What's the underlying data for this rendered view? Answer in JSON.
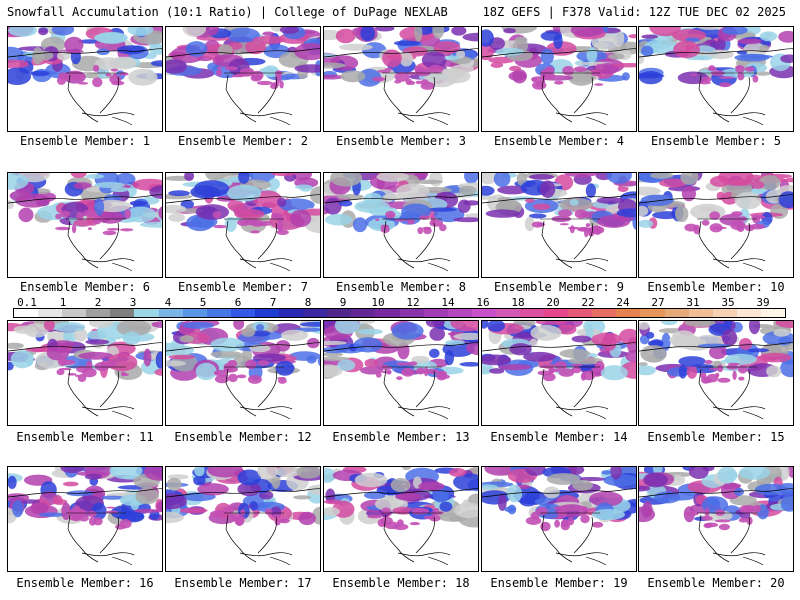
{
  "header": {
    "left": "Snowfall Accumulation (10:1 Ratio) | College of DuPage NEXLAB",
    "right": "18Z GEFS | F378 Valid: 12Z TUE DEC 02 2025"
  },
  "members": [
    {
      "label": "Ensemble Member: 1"
    },
    {
      "label": "Ensemble Member: 2"
    },
    {
      "label": "Ensemble Member: 3"
    },
    {
      "label": "Ensemble Member: 4"
    },
    {
      "label": "Ensemble Member: 5"
    },
    {
      "label": "Ensemble Member: 6"
    },
    {
      "label": "Ensemble Member: 7"
    },
    {
      "label": "Ensemble Member: 8"
    },
    {
      "label": "Ensemble Member: 9"
    },
    {
      "label": "Ensemble Member: 10"
    },
    {
      "label": "Ensemble Member: 11"
    },
    {
      "label": "Ensemble Member: 12"
    },
    {
      "label": "Ensemble Member: 13"
    },
    {
      "label": "Ensemble Member: 14"
    },
    {
      "label": "Ensemble Member: 15"
    },
    {
      "label": "Ensemble Member: 16"
    },
    {
      "label": "Ensemble Member: 17"
    },
    {
      "label": "Ensemble Member: 18"
    },
    {
      "label": "Ensemble Member: 19"
    },
    {
      "label": "Ensemble Member: 20"
    }
  ],
  "colorbar": {
    "labels": [
      "0.1",
      "1",
      "2",
      "3",
      "4",
      "5",
      "6",
      "7",
      "8",
      "9",
      "10",
      "12",
      "14",
      "16",
      "18",
      "20",
      "22",
      "24",
      "27",
      "31",
      "35",
      "39"
    ],
    "colors": [
      "#ffffff",
      "#e6e6e6",
      "#c8c8c8",
      "#a0a0a0",
      "#7f7f7f",
      "#9bd7e6",
      "#78b4e6",
      "#5a96e6",
      "#4678e6",
      "#325ae6",
      "#1e3cd2",
      "#2828b4",
      "#3c28a0",
      "#50288c",
      "#642896",
      "#7828a0",
      "#8c32aa",
      "#a03cb4",
      "#b446be",
      "#c850c8",
      "#d25ab4",
      "#dc50a0",
      "#e6468c",
      "#e65a78",
      "#e66e64",
      "#e68250",
      "#e6965a",
      "#e6aa78",
      "#f0be96",
      "#f5d2b4",
      "#fae6d2",
      "#fff5e6"
    ]
  },
  "legend_icons": [
    "base-map-icon"
  ]
}
